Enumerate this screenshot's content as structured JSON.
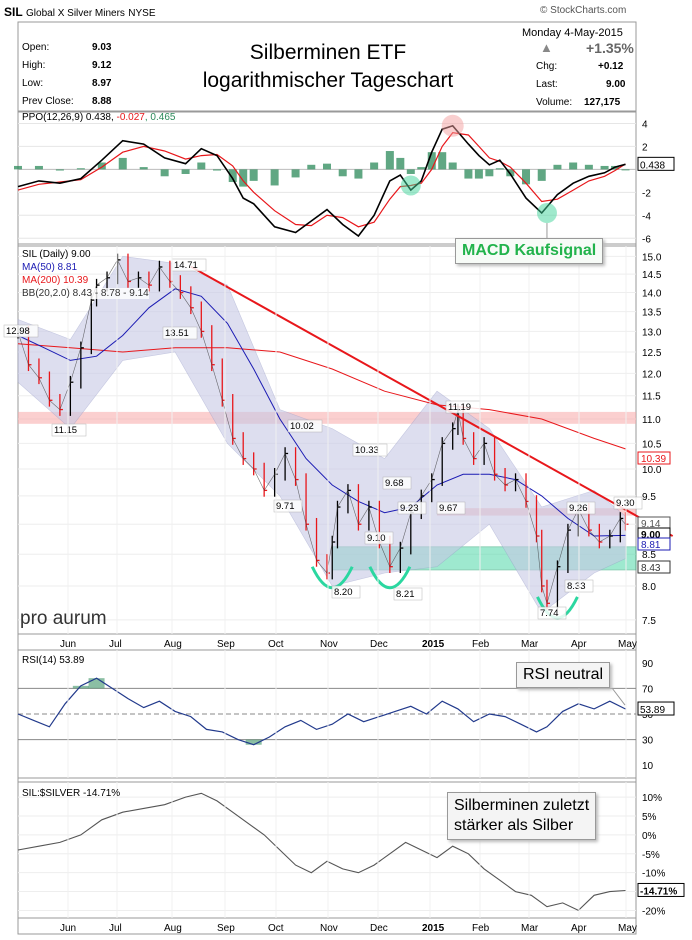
{
  "header": {
    "symbol": "SIL",
    "name": "Global X Silver Miners",
    "exchange": "NYSE",
    "copyright": "© StockCharts.com",
    "date": "Monday  4-May-2015",
    "stats": {
      "open_label": "Open:",
      "open": "9.03",
      "high_label": "High:",
      "high": "9.12",
      "low_label": "Low:",
      "low": "8.97",
      "prev_label": "Prev Close:",
      "prev": "8.88",
      "change_pct": "+1.35%",
      "chg_label": "Chg:",
      "chg": "+0.12",
      "last_label": "Last:",
      "last": "9.00",
      "volume_label": "Volume:",
      "volume": "127,175"
    },
    "title_line1": "Silberminen ETF",
    "title_line2": "logarithmischer Tageschart"
  },
  "colors": {
    "red": "#e8171b",
    "blue": "#1b1bb3",
    "green_zone": "#4fd8a8",
    "pink_zone": "#f7a8a8",
    "bb_fill": "#c7c9e6",
    "macd_hist": "#2b8a5a",
    "gray": "#888888"
  },
  "chart_data": [
    {
      "type": "line",
      "panel": "ppo",
      "legend": "PPO(12,26,9) 0.438, -0.027, 0.465",
      "legend_parts": [
        "PPO(12,26,9) 0.438, ",
        "-0.027",
        ", 0.465"
      ],
      "y_ticks": [
        "4",
        "2",
        "-2",
        "-4",
        "-6"
      ],
      "ylim": [
        -6.5,
        5
      ],
      "last_label": "0.438",
      "annotation": "MACD Kaufsignal",
      "series": [
        {
          "name": "PPO",
          "x": [
            0,
            8,
            16,
            24,
            32,
            40,
            48,
            56,
            64,
            70,
            76,
            82,
            86,
            90,
            98,
            106,
            112,
            118,
            124,
            130,
            136,
            142,
            146,
            150,
            154,
            158,
            162,
            166,
            172,
            176,
            180,
            184,
            188,
            194,
            200,
            206,
            212,
            218,
            224,
            228,
            232
          ],
          "values": [
            -1.5,
            -1.0,
            -1.2,
            -0.8,
            0.8,
            2.5,
            2.2,
            1.0,
            0.5,
            1.8,
            1.2,
            -0.8,
            -2.5,
            -3.0,
            -5.0,
            -5.5,
            -4.5,
            -3.5,
            -4.8,
            -5.8,
            -4.0,
            -1.0,
            -0.5,
            -1.8,
            -1.0,
            1.5,
            3.5,
            3.8,
            2.2,
            1.2,
            0.4,
            0.8,
            -0.4,
            -2.5,
            -3.8,
            -2.2,
            -1.2,
            -0.6,
            -0.3,
            0.2,
            0.44
          ]
        },
        {
          "name": "Signal",
          "x": [
            0,
            8,
            16,
            24,
            32,
            40,
            48,
            56,
            64,
            70,
            76,
            82,
            86,
            90,
            98,
            106,
            112,
            118,
            124,
            130,
            136,
            142,
            146,
            150,
            154,
            158,
            162,
            166,
            172,
            176,
            180,
            184,
            188,
            194,
            200,
            206,
            212,
            218,
            224,
            228,
            232
          ],
          "values": [
            -1.8,
            -1.3,
            -1.1,
            -0.9,
            0.2,
            1.5,
            2.0,
            1.6,
            0.9,
            1.2,
            1.3,
            0.3,
            -1.0,
            -2.0,
            -3.6,
            -4.8,
            -4.9,
            -4.0,
            -4.2,
            -5.0,
            -4.6,
            -2.6,
            -1.5,
            -1.4,
            -1.2,
            0.0,
            2.0,
            3.2,
            3.0,
            2.0,
            1.0,
            0.7,
            0.2,
            -1.2,
            -2.8,
            -2.6,
            -1.8,
            -1.0,
            -0.6,
            -0.1,
            0.47
          ]
        },
        {
          "name": "Histogram",
          "x": [
            0,
            8,
            16,
            24,
            32,
            40,
            48,
            56,
            64,
            70,
            76,
            82,
            86,
            90,
            98,
            106,
            112,
            118,
            124,
            130,
            136,
            142,
            146,
            150,
            154,
            158,
            162,
            166,
            172,
            176,
            180,
            184,
            188,
            194,
            200,
            206,
            212,
            218,
            224,
            228,
            232
          ],
          "values": [
            0.3,
            0.3,
            -0.1,
            0.1,
            0.6,
            1.0,
            0.2,
            -0.6,
            -0.4,
            0.6,
            -0.1,
            -1.1,
            -1.5,
            -1.0,
            -1.4,
            -0.7,
            0.4,
            0.5,
            -0.6,
            -0.8,
            0.6,
            1.6,
            1.0,
            -0.4,
            0.2,
            1.5,
            1.5,
            0.6,
            -0.8,
            -0.8,
            -0.6,
            0.1,
            -0.6,
            -1.3,
            -1.0,
            0.4,
            0.6,
            0.4,
            0.3,
            0.3,
            -0.03
          ]
        }
      ]
    },
    {
      "type": "line",
      "panel": "price",
      "legend": [
        "SIL (Daily) 9.00",
        "MA(50) 8.81",
        "MA(200) 10.39",
        "BB(20,2.0) 8.43 - 8.78 - 9.14"
      ],
      "y_scale": "log",
      "y_ticks": [
        "15.0",
        "14.5",
        "14.0",
        "13.5",
        "13.0",
        "12.5",
        "12.0",
        "11.5",
        "11.0",
        "10.5",
        "10.0",
        "9.5",
        "9.0",
        "8.5",
        "8.0",
        "7.5"
      ],
      "ylim": [
        7.3,
        15.3
      ],
      "x_tick_labels": [
        "Jun",
        "Jul",
        "Aug",
        "Sep",
        "Oct",
        "Nov",
        "Dec",
        "2015",
        "Feb",
        "Mar",
        "Apr",
        "May"
      ],
      "price_annotations": [
        "12.98",
        "11.15",
        "14.71",
        "13.51",
        "9.71",
        "10.02",
        "10.33",
        "9.68",
        "9.10",
        "9.23",
        "9.67",
        "11.19",
        "8.20",
        "8.21",
        "9.26",
        "9.30",
        "8.33",
        "7.74"
      ],
      "last_labels": [
        "10.39",
        "9.14",
        "9.00",
        "8.81",
        "8.43"
      ],
      "zones": [
        {
          "name": "resistance",
          "range": [
            10.9,
            11.15
          ]
        },
        {
          "name": "support",
          "range": [
            8.25,
            8.62
          ]
        },
        {
          "name": "upper-band",
          "range": [
            9.15,
            9.28
          ]
        }
      ],
      "trendline": {
        "from": [
          66,
          14.71
        ],
        "to": [
          236,
          9.15
        ]
      },
      "watermark": "pro aurum",
      "series": [
        {
          "name": "SIL",
          "x": [
            0,
            4,
            8,
            12,
            16,
            20,
            24,
            28,
            30,
            34,
            38,
            42,
            46,
            50,
            54,
            58,
            62,
            66,
            70,
            74,
            78,
            82,
            86,
            90,
            94,
            98,
            102,
            106,
            110,
            114,
            118,
            120,
            122,
            126,
            130,
            134,
            138,
            142,
            146,
            150,
            154,
            158,
            162,
            166,
            168,
            170,
            174,
            178,
            182,
            186,
            190,
            194,
            198,
            200,
            202,
            206,
            210,
            214,
            218,
            222,
            226,
            230,
            232
          ],
          "values": [
            12.98,
            12.2,
            11.9,
            11.4,
            11.2,
            11.8,
            12.6,
            13.8,
            14.2,
            14.4,
            14.9,
            14.3,
            14.4,
            14.2,
            14.7,
            14.3,
            14.0,
            13.6,
            13.0,
            12.2,
            11.4,
            10.6,
            10.2,
            10.0,
            9.6,
            9.9,
            10.3,
            9.8,
            9.0,
            8.4,
            8.2,
            8.7,
            9.3,
            9.6,
            9.0,
            9.3,
            8.7,
            8.3,
            8.6,
            9.2,
            9.5,
            9.8,
            10.5,
            10.8,
            11.19,
            10.6,
            10.2,
            10.5,
            9.9,
            9.7,
            9.8,
            9.4,
            8.8,
            8.0,
            7.74,
            8.3,
            8.9,
            9.26,
            8.9,
            8.7,
            8.8,
            9.1,
            9.0
          ]
        },
        {
          "name": "MA(50)",
          "x": [
            0,
            10,
            20,
            30,
            40,
            50,
            60,
            70,
            80,
            90,
            100,
            110,
            120,
            130,
            140,
            150,
            160,
            170,
            180,
            190,
            200,
            210,
            220,
            232
          ],
          "values": [
            12.9,
            12.6,
            12.3,
            12.4,
            12.9,
            13.6,
            14.1,
            13.9,
            13.2,
            12.1,
            11.0,
            10.2,
            9.7,
            9.4,
            9.2,
            9.3,
            9.7,
            9.9,
            9.9,
            9.8,
            9.5,
            9.1,
            8.8,
            8.81
          ]
        },
        {
          "name": "MA(200)",
          "x": [
            0,
            20,
            40,
            60,
            80,
            100,
            120,
            140,
            160,
            180,
            200,
            220,
            232
          ],
          "values": [
            12.7,
            12.6,
            12.5,
            12.6,
            12.6,
            12.5,
            12.1,
            11.6,
            11.3,
            11.2,
            11.0,
            10.6,
            10.39
          ]
        },
        {
          "name": "BB upper",
          "x": [
            0,
            20,
            40,
            60,
            80,
            100,
            120,
            140,
            160,
            180,
            200,
            220,
            232
          ],
          "values": [
            13.3,
            12.8,
            15.0,
            14.8,
            14.2,
            11.2,
            10.8,
            10.2,
            11.6,
            10.8,
            9.3,
            9.6,
            9.14
          ]
        },
        {
          "name": "BB lower",
          "x": [
            0,
            20,
            40,
            60,
            80,
            100,
            120,
            140,
            160,
            180,
            200,
            220,
            232
          ],
          "values": [
            11.8,
            10.8,
            12.3,
            12.5,
            10.5,
            9.5,
            8.0,
            8.2,
            8.3,
            9.0,
            7.6,
            8.2,
            8.43
          ]
        }
      ]
    },
    {
      "type": "line",
      "panel": "rsi",
      "legend": "RSI(14) 53.89",
      "y_ticks": [
        "90",
        "70",
        "50",
        "30",
        "10"
      ],
      "ylim": [
        0,
        100
      ],
      "reference_lines": [
        70,
        50,
        30
      ],
      "last_label": "53.89",
      "annotation": "RSI neutral",
      "series": [
        {
          "name": "RSI",
          "x": [
            0,
            6,
            12,
            18,
            24,
            30,
            36,
            42,
            48,
            54,
            60,
            66,
            72,
            78,
            84,
            90,
            96,
            102,
            108,
            114,
            120,
            126,
            132,
            138,
            144,
            150,
            156,
            162,
            168,
            174,
            180,
            186,
            192,
            198,
            202,
            208,
            214,
            220,
            226,
            232
          ],
          "values": [
            50,
            45,
            40,
            58,
            72,
            78,
            70,
            62,
            55,
            60,
            52,
            48,
            38,
            36,
            30,
            26,
            32,
            40,
            45,
            38,
            42,
            50,
            44,
            48,
            52,
            56,
            50,
            60,
            54,
            44,
            50,
            48,
            42,
            36,
            40,
            52,
            58,
            54,
            60,
            53.89
          ]
        }
      ]
    },
    {
      "type": "line",
      "panel": "ratio",
      "legend": "SIL:$SILVER -14.71%",
      "y_ticks": [
        "10%",
        "5%",
        "0%",
        "-5%",
        "-10%",
        "-15%",
        "-20%"
      ],
      "ylim": [
        -22,
        14
      ],
      "last_label": "-14.71%",
      "annotation_lines": [
        "Silberminen zuletzt",
        "stärker als Silber"
      ],
      "series": [
        {
          "name": "SIL:$SILVER",
          "x": [
            0,
            8,
            16,
            24,
            32,
            40,
            48,
            56,
            64,
            70,
            76,
            82,
            88,
            94,
            100,
            106,
            112,
            118,
            124,
            130,
            136,
            142,
            148,
            154,
            160,
            166,
            172,
            178,
            184,
            190,
            196,
            202,
            208,
            214,
            220,
            226,
            232
          ],
          "values": [
            -4,
            -3,
            -2,
            0,
            4,
            6,
            7,
            8,
            10,
            11,
            9,
            6,
            3,
            0,
            -4,
            -8,
            -10,
            -7,
            -9,
            -10,
            -8,
            -5,
            -2,
            -4,
            -6,
            -3,
            -5,
            -9,
            -12,
            -15,
            -16,
            -19,
            -18,
            -20,
            -16,
            -15,
            -14.71
          ]
        }
      ]
    }
  ]
}
